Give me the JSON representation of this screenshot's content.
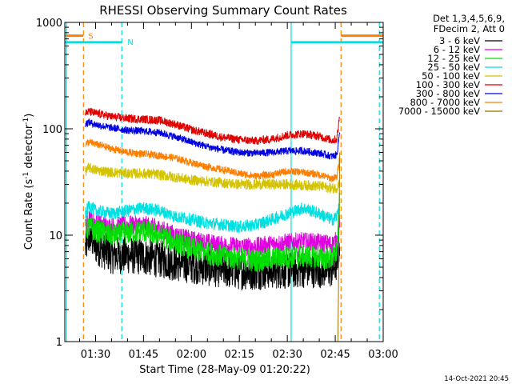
{
  "chart_data": {
    "type": "line",
    "title": "RHESSI Observing Summary Count Rates",
    "xlabel": "Start Time (28-May-09 01:20:22)",
    "ylabel_main": "Count Rate (s",
    "ylabel_sup1": "-1",
    "ylabel_mid": " detector",
    "ylabel_sup2": "-1",
    "ylabel_end": ")",
    "yscale": "log",
    "ylim": [
      1,
      1000
    ],
    "xlim_minutes": [
      80.37,
      180
    ],
    "x_ticks": [
      {
        "label": "01:30",
        "minute": 90
      },
      {
        "label": "01:45",
        "minute": 105
      },
      {
        "label": "02:00",
        "minute": 120
      },
      {
        "label": "02:15",
        "minute": 135
      },
      {
        "label": "02:30",
        "minute": 150
      },
      {
        "label": "02:45",
        "minute": 165
      },
      {
        "label": "03:00",
        "minute": 180
      }
    ],
    "y_ticks": [
      {
        "label": "1",
        "value": 1
      },
      {
        "label": "10",
        "value": 10
      },
      {
        "label": "100",
        "value": 100
      },
      {
        "label": "1000",
        "value": 1000
      }
    ],
    "legend_header": [
      "Det 1,3,4,5,6,9,",
      "FDecim 2, Att 0"
    ],
    "legend_position": "right-outside",
    "footer_date": "14-Oct-2021 20:45",
    "data_start_minute": 86.8,
    "data_end_minute": 166.4,
    "series": [
      {
        "name": "3 - 6 keV",
        "color": "#000000",
        "x": [
          86.8,
          88,
          90,
          95,
          100,
          105,
          110,
          115,
          120,
          125,
          130,
          135,
          140,
          145,
          150,
          155,
          160,
          164,
          165.5,
          166.4
        ],
        "y": [
          7.5,
          10,
          8,
          6.5,
          6.5,
          6.3,
          6,
          5.5,
          5.3,
          5.0,
          4.8,
          4.6,
          4.6,
          4.7,
          4.7,
          4.8,
          4.8,
          4.8,
          5.5,
          9
        ],
        "noise": 0.18
      },
      {
        "name": "6 - 12 keV",
        "color": "#e000e0",
        "x": [
          86.8,
          88,
          90,
          95,
          100,
          105,
          110,
          115,
          120,
          125,
          130,
          135,
          140,
          145,
          150,
          155,
          160,
          164,
          165.5,
          166.4
        ],
        "y": [
          12,
          15,
          13,
          12,
          12.5,
          12.5,
          11.5,
          10,
          9,
          8.5,
          8.0,
          7.8,
          7.8,
          8.2,
          8.5,
          8.7,
          8.5,
          8.2,
          9,
          14
        ],
        "noise": 0.09
      },
      {
        "name": "12 - 25 keV",
        "color": "#00e000",
        "x": [
          86.8,
          88,
          90,
          95,
          100,
          105,
          110,
          115,
          120,
          125,
          130,
          135,
          140,
          145,
          150,
          155,
          160,
          164,
          165.5,
          166.4
        ],
        "y": [
          11,
          12,
          11,
          10,
          10.5,
          11,
          10,
          8.5,
          7.5,
          6.8,
          6.3,
          6.0,
          5.8,
          6.0,
          6.2,
          6.3,
          6.2,
          6.0,
          7,
          20
        ],
        "noise": 0.11
      },
      {
        "name": "25 - 50 keV",
        "color": "#00e0e0",
        "x": [
          86.8,
          88,
          90,
          95,
          100,
          105,
          110,
          115,
          120,
          125,
          130,
          135,
          140,
          145,
          150,
          155,
          160,
          164,
          165.5,
          166.4
        ],
        "y": [
          16,
          19,
          17,
          16,
          17,
          18,
          17,
          15,
          14,
          13,
          12.5,
          12,
          12.5,
          14,
          16,
          18,
          16,
          14,
          15,
          22
        ],
        "noise": 0.06
      },
      {
        "name": "50 - 100 keV",
        "color": "#d4c400",
        "x": [
          86.8,
          88,
          90,
          95,
          100,
          105,
          110,
          115,
          120,
          125,
          130,
          135,
          140,
          145,
          150,
          155,
          160,
          164,
          165.5,
          166.4
        ],
        "y": [
          40,
          43,
          41,
          39,
          38,
          38,
          37,
          35,
          33,
          32,
          31,
          30,
          30,
          30,
          30,
          29.5,
          29,
          27.5,
          28,
          32
        ],
        "noise": 0.05
      },
      {
        "name": "100 - 300 keV",
        "color": "#e00000",
        "x": [
          86.8,
          88,
          90,
          95,
          100,
          105,
          110,
          115,
          120,
          125,
          130,
          135,
          140,
          145,
          150,
          155,
          160,
          164,
          165.5,
          166.4
        ],
        "y": [
          140,
          145,
          140,
          130,
          125,
          123,
          120,
          110,
          98,
          90,
          83,
          79,
          77,
          80,
          87,
          90,
          85,
          78,
          80,
          135
        ],
        "noise": 0.04
      },
      {
        "name": "300 - 800 keV",
        "color": "#0000e0",
        "x": [
          86.8,
          88,
          90,
          95,
          100,
          105,
          110,
          115,
          120,
          125,
          130,
          135,
          140,
          145,
          150,
          155,
          160,
          164,
          165.5,
          166.4
        ],
        "y": [
          112,
          115,
          110,
          102,
          97,
          95,
          92,
          84,
          75,
          68,
          63,
          60,
          59,
          60,
          62,
          62,
          59,
          55,
          57,
          95
        ],
        "noise": 0.035
      },
      {
        "name": "800 - 7000 keV",
        "color": "#ff7f00",
        "x": [
          86.8,
          88,
          90,
          95,
          100,
          105,
          110,
          115,
          120,
          125,
          130,
          135,
          140,
          145,
          150,
          155,
          160,
          164,
          165.5,
          166.4
        ],
        "y": [
          72,
          75,
          72,
          65,
          60,
          58,
          56,
          53,
          48,
          44,
          41,
          38,
          36,
          37,
          40,
          39,
          37,
          34,
          35,
          55
        ],
        "noise": 0.035
      },
      {
        "name": "7000 - 15000 keV",
        "color": "#a07000",
        "x": [
          165.8,
          166.0,
          166.2,
          166.4
        ],
        "y": [
          1,
          3,
          15,
          60
        ],
        "noise": 0
      }
    ],
    "flags": [
      {
        "label": "S",
        "color": "#ff7f00",
        "level": 750,
        "line_style": "dashed",
        "segments": [
          [
            80.37,
            86.2
          ],
          [
            166.8,
            180
          ]
        ],
        "boundaries": [
          86.2,
          166.8
        ]
      },
      {
        "label": "N",
        "color": "#00e0e0",
        "level": 650,
        "line_style": "mixed",
        "segments": [
          [
            80.37,
            98.2
          ],
          [
            151.2,
            180
          ]
        ],
        "boundaries": [
          80.9,
          98.2,
          151.2,
          178.8
        ]
      }
    ]
  }
}
